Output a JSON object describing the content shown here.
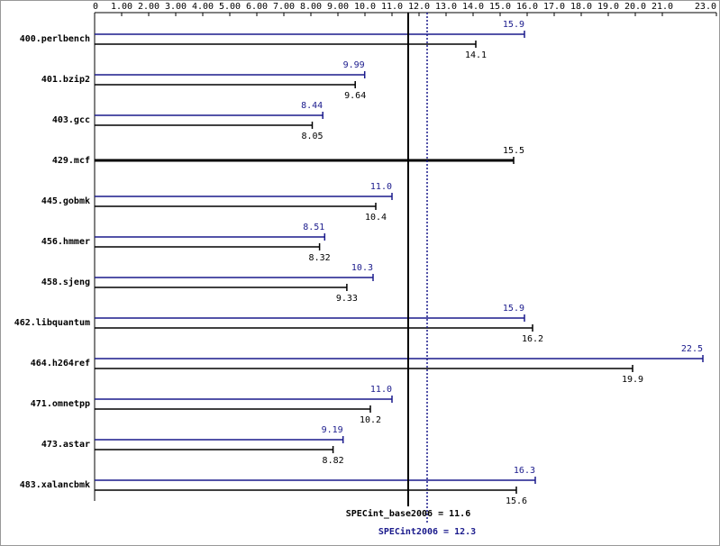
{
  "chart_data": {
    "type": "bar",
    "orientation": "horizontal",
    "categories": [
      "400.perlbench",
      "401.bzip2",
      "403.gcc",
      "429.mcf",
      "445.gobmk",
      "456.hmmer",
      "458.sjeng",
      "462.libquantum",
      "464.h264ref",
      "471.omnetpp",
      "473.astar",
      "483.xalancbmk"
    ],
    "series": [
      {
        "color": "#1a1a8c",
        "values": [
          15.9,
          9.99,
          8.44,
          null,
          11.0,
          8.51,
          10.3,
          15.9,
          22.5,
          11.0,
          9.19,
          16.3
        ],
        "value_labels": [
          "15.9",
          "9.99",
          "8.44",
          null,
          "11.0",
          "8.51",
          "10.3",
          "15.9",
          "22.5",
          "11.0",
          "9.19",
          "16.3"
        ]
      },
      {
        "color": "#000000",
        "values": [
          14.1,
          9.64,
          8.05,
          15.5,
          10.4,
          8.32,
          9.33,
          16.2,
          19.9,
          10.2,
          8.82,
          15.6
        ],
        "value_labels": [
          "14.1",
          "9.64",
          "8.05",
          "15.5",
          "10.4",
          "8.32",
          "9.33",
          "16.2",
          "19.9",
          "10.2",
          "8.82",
          "15.6"
        ]
      }
    ],
    "xlim": [
      0,
      23
    ],
    "xticks": [
      0,
      {
        "value": 1,
        "label": "1.00"
      },
      {
        "value": 2,
        "label": "2.00"
      },
      {
        "value": 3,
        "label": "3.00"
      },
      {
        "value": 4,
        "label": "4.00"
      },
      {
        "value": 5,
        "label": "5.00"
      },
      {
        "value": 6,
        "label": "6.00"
      },
      {
        "value": 7,
        "label": "7.00"
      },
      {
        "value": 8,
        "label": "8.00"
      },
      {
        "value": 9,
        "label": "9.00"
      },
      {
        "value": 10,
        "label": "10.0"
      },
      {
        "value": 11,
        "label": "11.0"
      },
      {
        "value": 12,
        "label": "12.0"
      },
      {
        "value": 13,
        "label": "13.0"
      },
      {
        "value": 14,
        "label": "14.0"
      },
      {
        "value": 15,
        "label": "15.0"
      },
      {
        "value": 16,
        "label": "16.0"
      },
      {
        "value": 17,
        "label": "17.0"
      },
      {
        "value": 18,
        "label": "18.0"
      },
      {
        "value": 19,
        "label": "19.0"
      },
      {
        "value": 20,
        "label": "20.0"
      },
      {
        "value": 21,
        "label": "21.0"
      },
      {
        "value": 23,
        "label": "23.0"
      }
    ],
    "reference_lines": [
      {
        "label": "SPECint_base2006 = 11.6",
        "value": 11.6,
        "color": "#000000",
        "style": "solid"
      },
      {
        "label": "SPECint2006 = 12.3",
        "value": 12.3,
        "color": "#1a1a8c",
        "style": "dotted"
      }
    ]
  }
}
